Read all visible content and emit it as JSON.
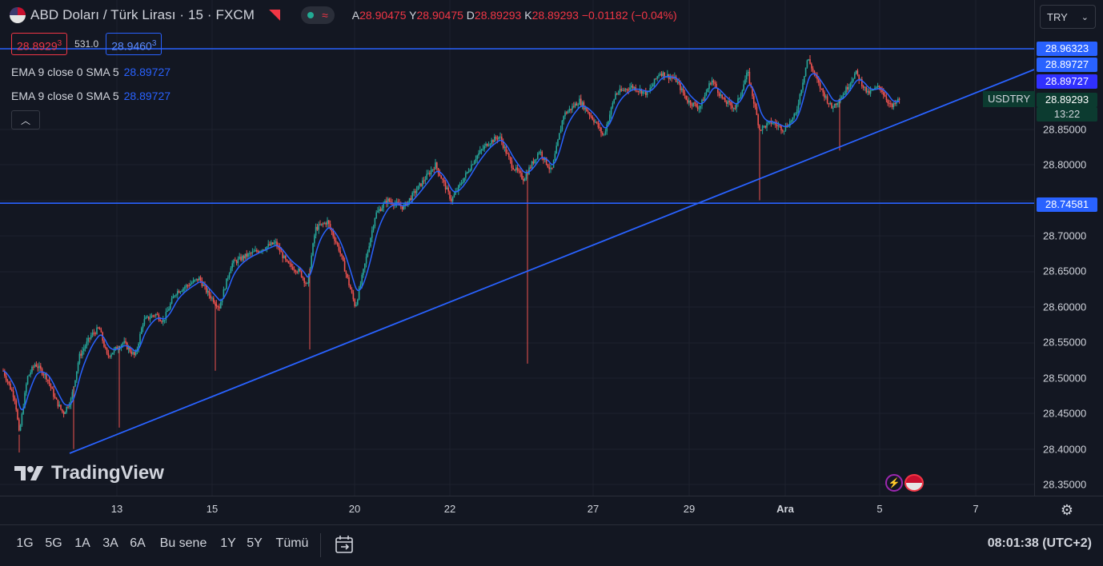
{
  "header": {
    "symbol_title": "ABD Doları / Türk Lirası · 15 · FXCM",
    "ohlc": [
      {
        "label": "A",
        "value": "28.90475"
      },
      {
        "label": "Y",
        "value": "28.90475"
      },
      {
        "label": "D",
        "value": "28.89293"
      },
      {
        "label": "K",
        "value": "28.89293"
      }
    ],
    "change": "−0.01182 (−0.04%)",
    "currency_select": "TRY"
  },
  "order_panel": {
    "sell_price": "28.8929",
    "sell_sup": "3",
    "spread": "531.0",
    "buy_price": "28.9460",
    "buy_sup": "3"
  },
  "indicators": [
    {
      "label": "EMA 9 close 0 SMA 5",
      "value": "28.89727"
    },
    {
      "label": "EMA 9 close 0 SMA 5",
      "value": "28.89727"
    }
  ],
  "price_axis": {
    "labels": [
      "28.85000",
      "28.80000",
      "28.70000",
      "28.65000",
      "28.60000",
      "28.55000",
      "28.50000",
      "28.45000",
      "28.40000",
      "28.35000"
    ],
    "tags": [
      "28.96323",
      "28.89727",
      "28.89727",
      "28.89293",
      "13:22",
      "28.74581"
    ],
    "symbol_tag": "USDTRY"
  },
  "time_axis": {
    "labels": [
      "13",
      "15",
      "20",
      "22",
      "27",
      "29",
      "Ara",
      "5",
      "7"
    ]
  },
  "bottom_bar": {
    "ranges": [
      "1G",
      "5G",
      "1A",
      "3A",
      "6A",
      "Bu sene",
      "1Y",
      "5Y",
      "Tümü"
    ],
    "clock": "08:01:38 (UTC+2)"
  },
  "watermark": "TradingView",
  "colors": {
    "background": "#131722",
    "up": "#26a69a",
    "down": "#ef5350",
    "accent_blue": "#2962ff",
    "line_blue": "#2962ff",
    "ema_line": "#2962ff"
  },
  "chart_data": {
    "type": "candlestick",
    "symbol": "USDTRY",
    "interval": "15",
    "ylim": [
      28.33,
      29.0
    ],
    "x": [
      "13",
      "15",
      "20",
      "22",
      "27",
      "29",
      "Ara",
      "5",
      "7"
    ],
    "close_path": [
      [
        0.0,
        28.51
      ],
      [
        0.015,
        28.47
      ],
      [
        0.02,
        28.42
      ],
      [
        0.03,
        28.5
      ],
      [
        0.04,
        28.52
      ],
      [
        0.055,
        28.5
      ],
      [
        0.065,
        28.47
      ],
      [
        0.075,
        28.45
      ],
      [
        0.085,
        28.47
      ],
      [
        0.095,
        28.53
      ],
      [
        0.11,
        28.56
      ],
      [
        0.12,
        28.57
      ],
      [
        0.13,
        28.53
      ],
      [
        0.14,
        28.54
      ],
      [
        0.15,
        28.55
      ],
      [
        0.165,
        28.53
      ],
      [
        0.175,
        28.58
      ],
      [
        0.19,
        28.59
      ],
      [
        0.2,
        28.58
      ],
      [
        0.215,
        28.62
      ],
      [
        0.23,
        28.63
      ],
      [
        0.245,
        28.64
      ],
      [
        0.255,
        28.62
      ],
      [
        0.27,
        28.6
      ],
      [
        0.285,
        28.66
      ],
      [
        0.3,
        28.67
      ],
      [
        0.32,
        28.68
      ],
      [
        0.34,
        28.69
      ],
      [
        0.355,
        28.66
      ],
      [
        0.37,
        28.65
      ],
      [
        0.38,
        28.63
      ],
      [
        0.39,
        28.71
      ],
      [
        0.405,
        28.72
      ],
      [
        0.42,
        28.68
      ],
      [
        0.43,
        28.64
      ],
      [
        0.44,
        28.6
      ],
      [
        0.45,
        28.65
      ],
      [
        0.465,
        28.73
      ],
      [
        0.48,
        28.75
      ],
      [
        0.5,
        28.74
      ],
      [
        0.52,
        28.77
      ],
      [
        0.54,
        28.8
      ],
      [
        0.56,
        28.75
      ],
      [
        0.575,
        28.78
      ],
      [
        0.59,
        28.81
      ],
      [
        0.605,
        28.83
      ],
      [
        0.62,
        28.84
      ],
      [
        0.635,
        28.8
      ],
      [
        0.65,
        28.78
      ],
      [
        0.67,
        28.82
      ],
      [
        0.685,
        28.79
      ],
      [
        0.7,
        28.87
      ],
      [
        0.72,
        28.89
      ],
      [
        0.74,
        28.86
      ],
      [
        0.75,
        28.84
      ],
      [
        0.765,
        28.9
      ],
      [
        0.785,
        28.91
      ],
      [
        0.805,
        28.9
      ],
      [
        0.82,
        28.93
      ],
      [
        0.84,
        28.92
      ],
      [
        0.855,
        28.89
      ],
      [
        0.87,
        28.88
      ],
      [
        0.885,
        28.92
      ],
      [
        0.9,
        28.89
      ],
      [
        0.915,
        28.88
      ],
      [
        0.93,
        28.93
      ],
      [
        0.945,
        28.85
      ],
      [
        0.96,
        28.86
      ],
      [
        0.975,
        28.85
      ],
      [
        0.99,
        28.87
      ],
      [
        1.005,
        28.95
      ],
      [
        1.02,
        28.91
      ],
      [
        1.035,
        28.88
      ],
      [
        1.05,
        28.9
      ],
      [
        1.065,
        28.93
      ],
      [
        1.08,
        28.9
      ],
      [
        1.095,
        28.91
      ],
      [
        1.11,
        28.88
      ],
      [
        1.12,
        28.89293
      ]
    ],
    "wick_lows": [
      [
        0.02,
        28.395
      ],
      [
        0.088,
        28.4
      ],
      [
        0.145,
        28.43
      ],
      [
        0.265,
        28.51
      ],
      [
        0.383,
        28.54
      ],
      [
        0.655,
        28.52
      ],
      [
        0.945,
        28.75
      ],
      [
        1.045,
        28.82
      ]
    ],
    "horizontal_lines": [
      28.96323,
      28.74581
    ],
    "trend_line": {
      "from": [
        "13 (before)",
        28.39
      ],
      "to": [
        "7 (after)",
        28.93
      ]
    },
    "last_price": 28.89293
  }
}
